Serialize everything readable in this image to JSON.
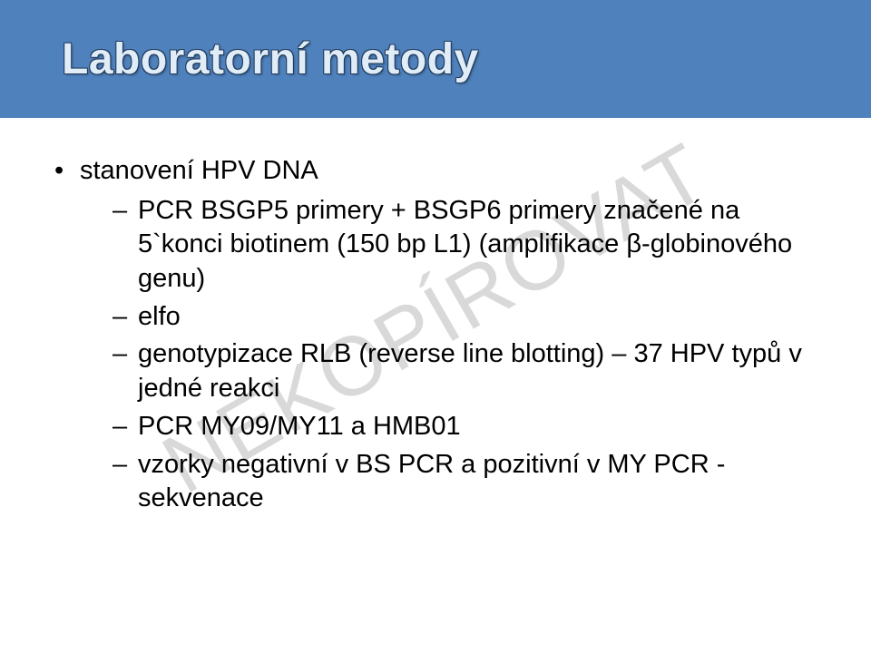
{
  "watermark": "NEKOPÍROVAT",
  "header": {
    "title": "Laboratorní metody",
    "bg_color": "#4f81bd",
    "title_color": "#e0ecf7",
    "title_outline": "#1f3a5a",
    "title_fontsize": 48
  },
  "body": {
    "text_color": "#000000",
    "fontsize": 29,
    "bullet_lvl1": "•",
    "bullet_lvl2": "–",
    "items": [
      {
        "text": "stanovení HPV DNA",
        "children": [
          {
            "text": "PCR BSGP5 primery + BSGP6 primery značené na 5`konci biotinem (150 bp L1) (amplifikace β-globinového genu)"
          },
          {
            "text": "elfo"
          },
          {
            "text": "genotypizace RLB (reverse line blotting) – 37 HPV typů v jedné reakci"
          },
          {
            "text": "PCR MY09/MY11 a HMB01"
          },
          {
            "text": "vzorky negativní v BS PCR a pozitivní v MY PCR - sekvenace"
          }
        ]
      }
    ]
  },
  "watermark_style": {
    "color": "#d9d9d9",
    "fontsize": 92,
    "rotate_deg": -30
  }
}
